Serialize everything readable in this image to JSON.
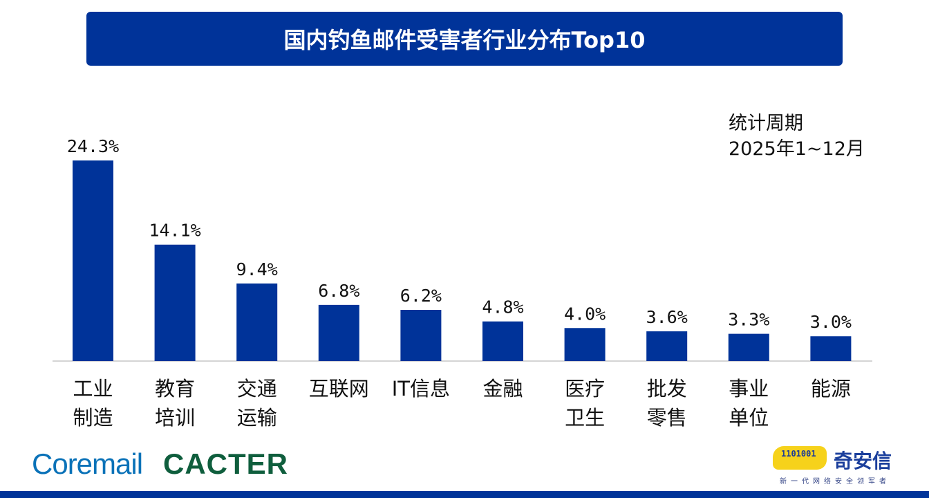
{
  "chart_data": {
    "type": "bar",
    "title": "国内钓鱼邮件受害者行业分布Top10",
    "categories": [
      [
        "工业",
        "制造"
      ],
      [
        "教育",
        "培训"
      ],
      [
        "交通",
        "运输"
      ],
      [
        "互联网"
      ],
      [
        "IT信息"
      ],
      [
        "金融"
      ],
      [
        "医疗",
        "卫生"
      ],
      [
        "批发",
        "零售"
      ],
      [
        "事业",
        "单位"
      ],
      [
        "能源"
      ]
    ],
    "values": [
      24.3,
      14.1,
      9.4,
      6.8,
      6.2,
      4.8,
      4.0,
      3.6,
      3.3,
      3.0
    ],
    "data_labels": [
      "24.3%",
      "14.1%",
      "9.4%",
      "6.8%",
      "6.2%",
      "4.8%",
      "4.0%",
      "3.6%",
      "3.3%",
      "3.0%"
    ],
    "unit": "%",
    "xlabel": "",
    "ylabel": "",
    "grid": false,
    "bar_color": "#003399"
  },
  "period": {
    "line1": "统计周期",
    "line2": "2025年1~12月"
  },
  "logos": {
    "coremail": "Coremail",
    "cacter": "CACTER",
    "qianxin": "奇安信",
    "qianxin_slogan": "新一代网络安全领军者",
    "qianxin_digits": "1101001"
  },
  "colors": {
    "title_bg": "#003399",
    "bar": "#003399",
    "coremail": "#0a72b8",
    "cacter": "#0f5e3d"
  }
}
